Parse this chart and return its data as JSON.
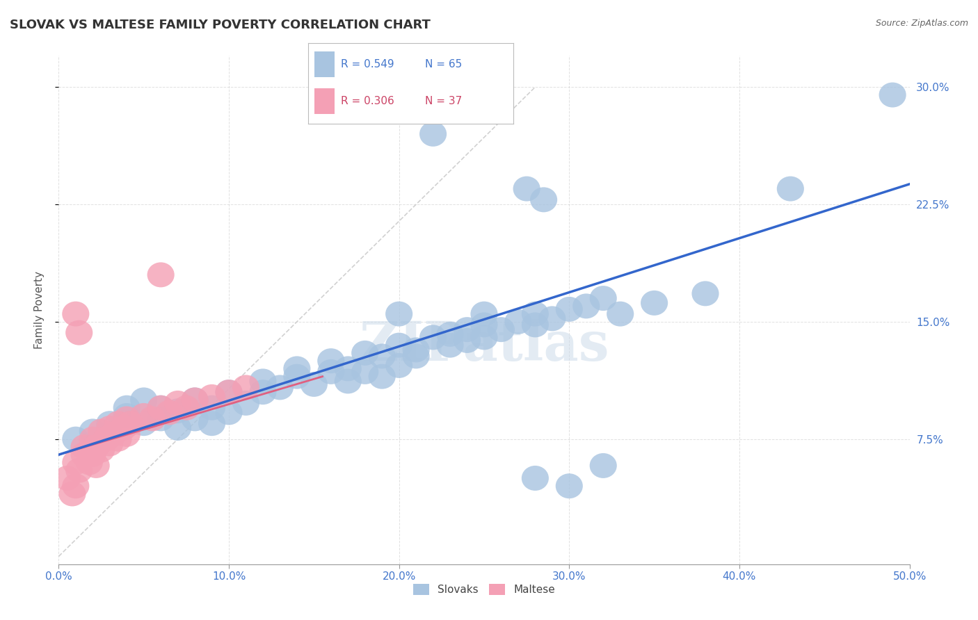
{
  "title": "SLOVAK VS MALTESE FAMILY POVERTY CORRELATION CHART",
  "source": "Source: ZipAtlas.com",
  "xlabel": "",
  "ylabel": "Family Poverty",
  "xlim": [
    0.0,
    0.5
  ],
  "ylim": [
    -0.005,
    0.32
  ],
  "xticks": [
    0.0,
    0.1,
    0.2,
    0.3,
    0.4,
    0.5
  ],
  "yticks": [
    0.075,
    0.15,
    0.225,
    0.3
  ],
  "ytick_labels": [
    "7.5%",
    "15.0%",
    "22.5%",
    "30.0%"
  ],
  "xtick_labels": [
    "0.0%",
    "10.0%",
    "20.0%",
    "30.0%",
    "40.0%",
    "50.0%"
  ],
  "slovak_color": "#a8c4e0",
  "maltese_color": "#f4a0b5",
  "line_blue": "#3366cc",
  "line_pink": "#e06080",
  "legend_slovak_label": "Slovaks",
  "legend_maltese_label": "Maltese",
  "R_slovak": 0.549,
  "N_slovak": 65,
  "R_maltese": 0.306,
  "N_maltese": 37,
  "sk_line_x0": 0.0,
  "sk_line_y0": 0.065,
  "sk_line_x1": 0.5,
  "sk_line_y1": 0.238,
  "mt_line_x0": 0.0,
  "mt_line_y0": 0.065,
  "mt_line_x1": 0.155,
  "mt_line_y1": 0.115,
  "ref_line_x0": 0.0,
  "ref_line_y0": 0.0,
  "ref_line_x1": 0.28,
  "ref_line_y1": 0.3,
  "watermark": "ZIPatlas",
  "background_color": "#ffffff",
  "grid_color": "#cccccc"
}
